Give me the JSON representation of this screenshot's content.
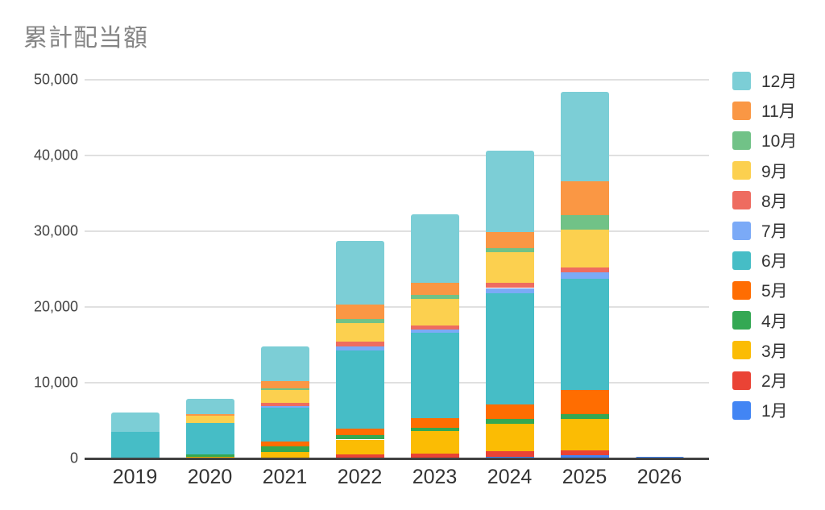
{
  "chart_data": {
    "type": "bar",
    "stacked": true,
    "title": "累計配当額",
    "categories": [
      "2019",
      "2020",
      "2021",
      "2022",
      "2023",
      "2024",
      "2025",
      "2026"
    ],
    "series": [
      {
        "name": "1月",
        "color": "#4285F4",
        "values": [
          0,
          0,
          0,
          0,
          0,
          200,
          400,
          250
        ]
      },
      {
        "name": "2月",
        "color": "#EA4335",
        "values": [
          0,
          0,
          0,
          500,
          600,
          750,
          650,
          0
        ]
      },
      {
        "name": "3月",
        "color": "#FBBC04",
        "values": [
          0,
          250,
          900,
          2000,
          3050,
          3600,
          4150,
          0
        ]
      },
      {
        "name": "4月",
        "color": "#34A853",
        "values": [
          0,
          250,
          700,
          600,
          400,
          700,
          700,
          0
        ]
      },
      {
        "name": "5月",
        "color": "#FF6D01",
        "values": [
          0,
          0,
          600,
          850,
          1250,
          1900,
          3100,
          0
        ]
      },
      {
        "name": "6月",
        "color": "#46BDC6",
        "values": [
          3500,
          4200,
          4500,
          10350,
          11300,
          14700,
          14700,
          0
        ]
      },
      {
        "name": "7月",
        "color": "#7BAAF7",
        "values": [
          0,
          0,
          200,
          500,
          400,
          650,
          850,
          0
        ]
      },
      {
        "name": "8月",
        "color": "#EE6C60",
        "values": [
          0,
          0,
          400,
          650,
          550,
          700,
          650,
          0
        ]
      },
      {
        "name": "9月",
        "color": "#FCD04F",
        "values": [
          0,
          900,
          1700,
          2450,
          3500,
          4050,
          5000,
          0
        ]
      },
      {
        "name": "10月",
        "color": "#71C287",
        "values": [
          0,
          0,
          300,
          500,
          500,
          550,
          1900,
          0
        ]
      },
      {
        "name": "11月",
        "color": "#FA9744",
        "values": [
          0,
          250,
          950,
          1900,
          1600,
          2100,
          4450,
          0
        ]
      },
      {
        "name": "12月",
        "color": "#7CCED6",
        "values": [
          2600,
          2050,
          4550,
          8400,
          9050,
          10700,
          11850,
          0
        ]
      }
    ],
    "y_tick_labels": [
      "0",
      "10,000",
      "20,000",
      "30,000",
      "40,000",
      "50,000"
    ],
    "ylim": [
      0,
      50000
    ],
    "y_tick_step": 10000,
    "grid": true,
    "legend_position": "right",
    "legend_order_top_to_bottom": [
      "12月",
      "11月",
      "10月",
      "9月",
      "8月",
      "7月",
      "6月",
      "5月",
      "4月",
      "3月",
      "2月",
      "1月"
    ]
  },
  "colors": {
    "grid": "#e0e0e0",
    "axis": "#424242",
    "title_text": "#858585",
    "tick_text": "#424242"
  }
}
